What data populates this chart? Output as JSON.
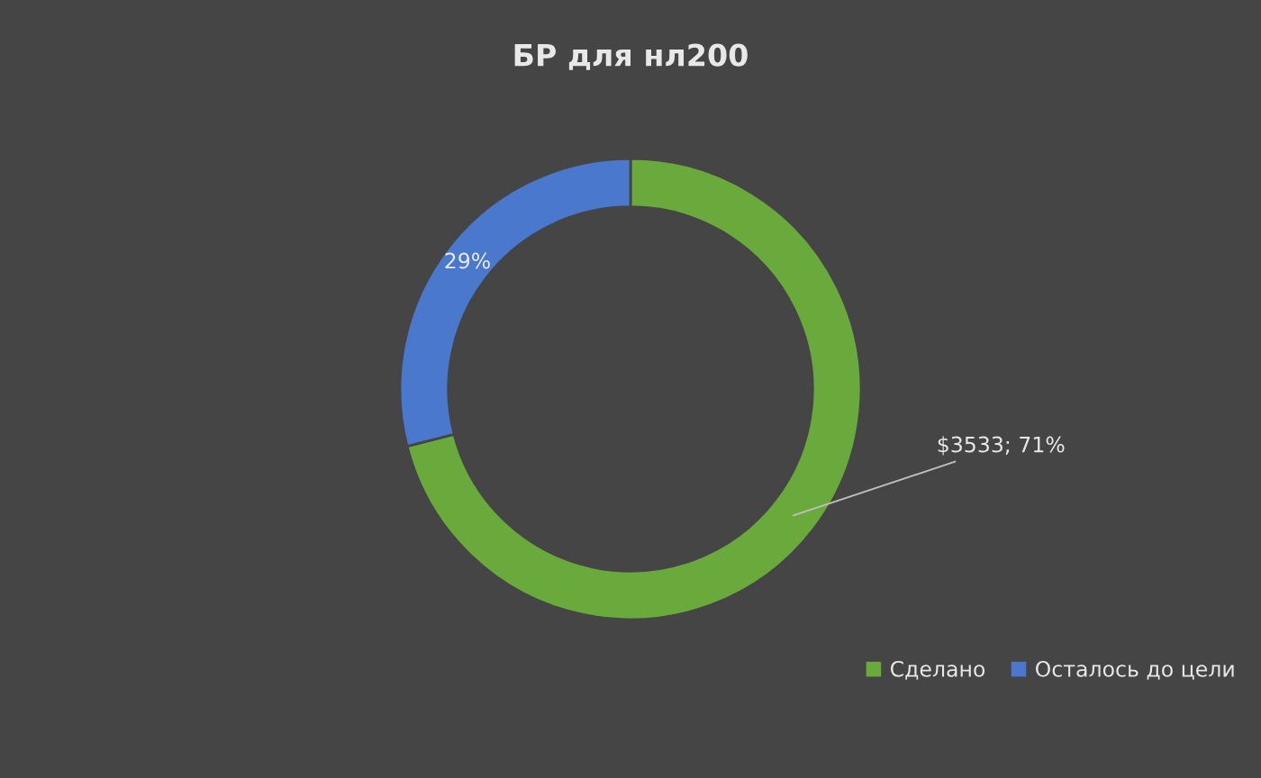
{
  "chart_data": {
    "type": "donut",
    "title": "БР для нл200",
    "categories": [
      "Сделано",
      "Осталось до цели"
    ],
    "values": [
      71,
      29
    ],
    "colors": [
      "#6aaa3c",
      "#4a78cc"
    ],
    "value_labels": [
      "$3533; 71%",
      "29%"
    ],
    "legend": "bottom right"
  }
}
